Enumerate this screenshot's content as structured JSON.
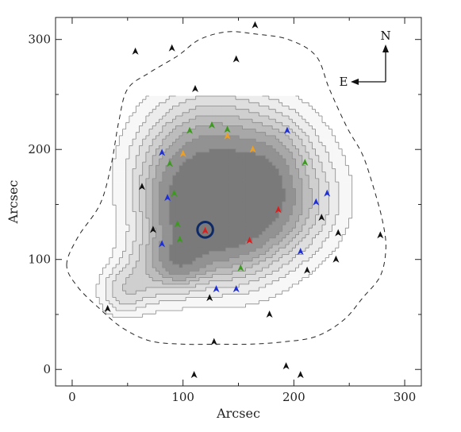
{
  "chart_data": {
    "type": "contour",
    "title": "",
    "xlabel": "Arcsec",
    "ylabel": "Arcsec",
    "xlim": [
      -15,
      315
    ],
    "ylim": [
      -15,
      320
    ],
    "xticks": [
      0,
      100,
      200,
      300
    ],
    "yticks": [
      0,
      100,
      200,
      300
    ],
    "grid": false,
    "compass": {
      "north": "N",
      "east": "E"
    },
    "colors": {
      "black": "#111111",
      "blue": "#1f2fd6",
      "green": "#3c9a1e",
      "orange": "#f0a020",
      "red": "#e01b1b",
      "circle": "#0d2a66",
      "contour_line": "#8a8a8a"
    },
    "contour_levels": [
      {
        "level": 1,
        "fill": "#f7f7f7"
      },
      {
        "level": 2,
        "fill": "#ececec"
      },
      {
        "level": 3,
        "fill": "#dedede"
      },
      {
        "level": 4,
        "fill": "#cfcfcf"
      },
      {
        "level": 5,
        "fill": "#bdbdbd"
      },
      {
        "level": 6,
        "fill": "#a8a8a8"
      },
      {
        "level": 7,
        "fill": "#929292"
      },
      {
        "level": 8,
        "fill": "#7a7a7a"
      }
    ],
    "dashed_boundary": [
      [
        -5,
        95
      ],
      [
        5,
        120
      ],
      [
        25,
        150
      ],
      [
        35,
        185
      ],
      [
        42,
        225
      ],
      [
        50,
        255
      ],
      [
        70,
        270
      ],
      [
        95,
        285
      ],
      [
        115,
        300
      ],
      [
        140,
        307
      ],
      [
        165,
        305
      ],
      [
        195,
        300
      ],
      [
        220,
        285
      ],
      [
        232,
        255
      ],
      [
        248,
        220
      ],
      [
        262,
        195
      ],
      [
        272,
        165
      ],
      [
        280,
        135
      ],
      [
        283,
        110
      ],
      [
        278,
        85
      ],
      [
        262,
        65
      ],
      [
        245,
        45
      ],
      [
        220,
        30
      ],
      [
        190,
        25
      ],
      [
        160,
        23
      ],
      [
        130,
        23
      ],
      [
        100,
        23
      ],
      [
        70,
        26
      ],
      [
        45,
        38
      ],
      [
        25,
        55
      ],
      [
        5,
        75
      ]
    ],
    "markers": [
      {
        "x": 57,
        "y": 289,
        "color": "black"
      },
      {
        "x": 90,
        "y": 292,
        "color": "black"
      },
      {
        "x": 165,
        "y": 313,
        "color": "black"
      },
      {
        "x": 148,
        "y": 282,
        "color": "black"
      },
      {
        "x": 111,
        "y": 255,
        "color": "black"
      },
      {
        "x": 63,
        "y": 166,
        "color": "black"
      },
      {
        "x": 73,
        "y": 127,
        "color": "black"
      },
      {
        "x": 32,
        "y": 55,
        "color": "black"
      },
      {
        "x": 124,
        "y": 65,
        "color": "black"
      },
      {
        "x": 128,
        "y": 25,
        "color": "black"
      },
      {
        "x": 178,
        "y": 50,
        "color": "black"
      },
      {
        "x": 110,
        "y": -5,
        "color": "black"
      },
      {
        "x": 193,
        "y": 3,
        "color": "black"
      },
      {
        "x": 206,
        "y": -5,
        "color": "black"
      },
      {
        "x": 225,
        "y": 138,
        "color": "black"
      },
      {
        "x": 240,
        "y": 124,
        "color": "black"
      },
      {
        "x": 238,
        "y": 100,
        "color": "black"
      },
      {
        "x": 212,
        "y": 90,
        "color": "black"
      },
      {
        "x": 278,
        "y": 122,
        "color": "black"
      },
      {
        "x": 81,
        "y": 197,
        "color": "blue"
      },
      {
        "x": 86,
        "y": 156,
        "color": "blue"
      },
      {
        "x": 81,
        "y": 114,
        "color": "blue"
      },
      {
        "x": 130,
        "y": 73,
        "color": "blue"
      },
      {
        "x": 148,
        "y": 73,
        "color": "blue"
      },
      {
        "x": 194,
        "y": 217,
        "color": "blue"
      },
      {
        "x": 220,
        "y": 152,
        "color": "blue"
      },
      {
        "x": 230,
        "y": 160,
        "color": "blue"
      },
      {
        "x": 206,
        "y": 107,
        "color": "blue"
      },
      {
        "x": 106,
        "y": 217,
        "color": "green"
      },
      {
        "x": 126,
        "y": 222,
        "color": "green"
      },
      {
        "x": 140,
        "y": 218,
        "color": "green"
      },
      {
        "x": 88,
        "y": 187,
        "color": "green"
      },
      {
        "x": 92,
        "y": 160,
        "color": "green"
      },
      {
        "x": 95,
        "y": 132,
        "color": "green"
      },
      {
        "x": 97,
        "y": 118,
        "color": "green"
      },
      {
        "x": 152,
        "y": 92,
        "color": "green"
      },
      {
        "x": 210,
        "y": 188,
        "color": "green"
      },
      {
        "x": 100,
        "y": 196,
        "color": "orange"
      },
      {
        "x": 140,
        "y": 212,
        "color": "orange"
      },
      {
        "x": 163,
        "y": 200,
        "color": "orange"
      },
      {
        "x": 120,
        "y": 126,
        "color": "red"
      },
      {
        "x": 160,
        "y": 117,
        "color": "red"
      },
      {
        "x": 186,
        "y": 145,
        "color": "red"
      }
    ],
    "circle_marker": {
      "x": 120,
      "y": 127,
      "radius": 7
    }
  }
}
